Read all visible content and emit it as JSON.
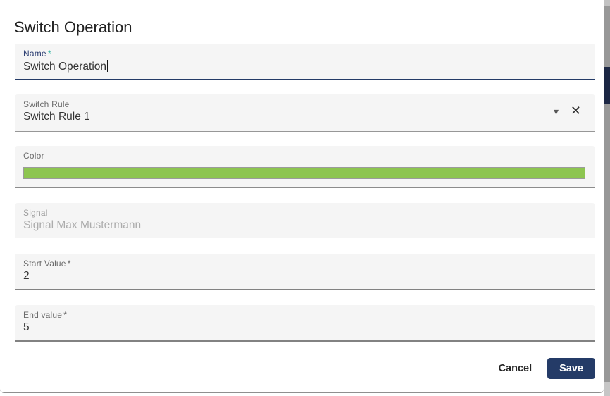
{
  "dialog": {
    "title": "Switch Operation",
    "fields": {
      "name": {
        "label": "Name",
        "required_marker": "*",
        "value": "Switch Operation",
        "state": "focused"
      },
      "switch_rule": {
        "label": "Switch Rule",
        "value": "Switch Rule 1",
        "dropdown_icon": "▾",
        "clear_icon": "✕"
      },
      "color": {
        "label": "Color",
        "swatch_color": "#8dc550"
      },
      "signal": {
        "label": "Signal",
        "value": "Signal Max Mustermann",
        "state": "disabled"
      },
      "start_value": {
        "label": "Start Value",
        "required_marker": "*",
        "value": "2"
      },
      "end_value": {
        "label": "End value",
        "required_marker": "*",
        "value": "5"
      }
    },
    "actions": {
      "cancel_label": "Cancel",
      "save_label": "Save"
    }
  },
  "colors": {
    "accent_navy": "#243b67",
    "focused_label": "#2c3e72",
    "required_teal": "#2fb3a0",
    "swatch_green": "#8dc550",
    "scrollbar_thumb_navy": "#1c2744"
  }
}
